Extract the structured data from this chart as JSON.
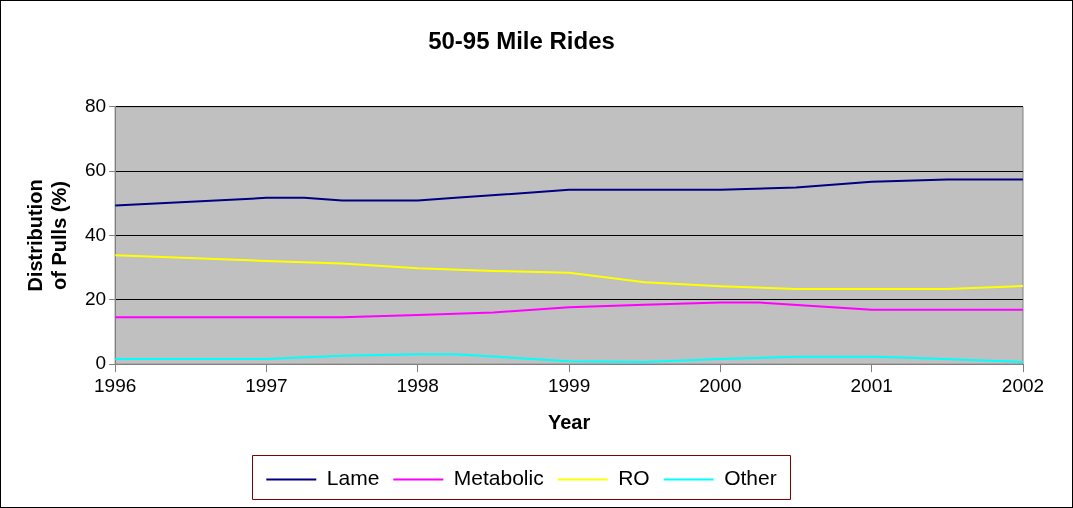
{
  "chart_data": {
    "type": "line",
    "title": "50-95 Mile Rides",
    "xlabel": "Year",
    "ylabel": "Distribution of Pulls (%)",
    "xlim": [
      1996,
      2002
    ],
    "xticks": [
      1996,
      1997,
      1998,
      1999,
      2000,
      2001,
      2002
    ],
    "ylim": [
      0,
      80
    ],
    "yticks": [
      0,
      20,
      40,
      60,
      80
    ],
    "grid": "y",
    "legend": "bottom",
    "marker": "none",
    "line_style": "solid",
    "series": [
      {
        "name": "Lame",
        "color": "#000080",
        "x": [
          1996,
          1997,
          1997.25,
          1997.5,
          1998,
          1998.25,
          1999,
          2000,
          2000.5,
          2001,
          2001.5,
          2002
        ],
        "values": [
          49.3,
          51.7,
          51.7,
          50.9,
          50.9,
          51.7,
          54.2,
          54.2,
          54.9,
          56.7,
          57.4,
          57.4
        ]
      },
      {
        "name": "Metabolic",
        "color": "#ff00ff",
        "x": [
          1996,
          1997,
          1997.5,
          1998,
          1998.5,
          1999,
          1999.5,
          2000,
          2000.25,
          2001,
          2002
        ],
        "values": [
          14.6,
          14.6,
          14.6,
          15.3,
          16.1,
          17.7,
          18.5,
          19.2,
          19.2,
          16.9,
          16.9
        ]
      },
      {
        "name": "RO",
        "color": "#ffff00",
        "x": [
          1996,
          1997,
          1997.5,
          1998,
          1998.5,
          1999,
          1999.5,
          2000,
          2000.5,
          2001,
          2001.5,
          2002
        ],
        "values": [
          33.9,
          32.1,
          31.3,
          29.8,
          29.0,
          28.4,
          25.5,
          24.2,
          23.4,
          23.4,
          23.4,
          24.3
        ]
      },
      {
        "name": "Other",
        "color": "#00ffff",
        "x": [
          1996,
          1997,
          1997.5,
          1998,
          1998.25,
          1999,
          1999.5,
          2000,
          2000.5,
          2001,
          2001.25,
          2002
        ],
        "values": [
          1.6,
          1.6,
          2.6,
          3.1,
          3.1,
          0.9,
          0.7,
          1.6,
          2.3,
          2.3,
          2.0,
          0.7
        ]
      }
    ]
  }
}
